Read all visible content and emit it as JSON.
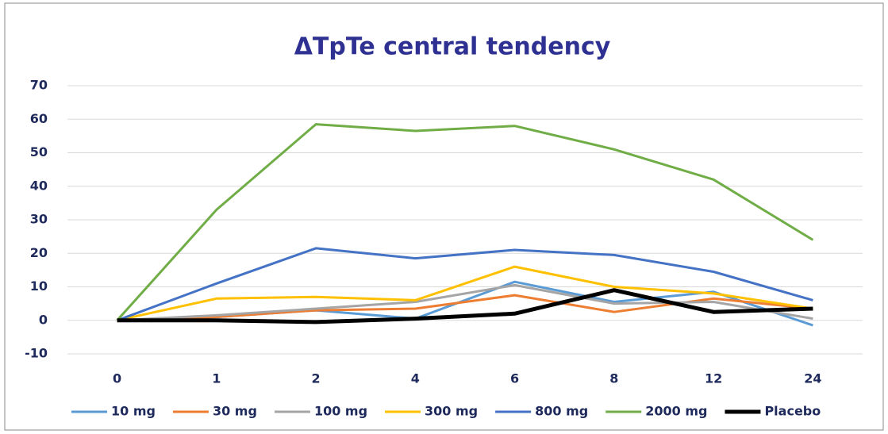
{
  "chart_data": {
    "type": "line",
    "title": "ΔTpTe central tendency",
    "categories": [
      "0",
      "1",
      "2",
      "4",
      "6",
      "8",
      "12",
      "24"
    ],
    "series": [
      {
        "name": "10 mg",
        "color": "#5b9bd5",
        "values": [
          0,
          1,
          3,
          0.5,
          11.5,
          5.5,
          8.5,
          -1.5
        ]
      },
      {
        "name": "30 mg",
        "color": "#ed7d31",
        "values": [
          0,
          1,
          3,
          3.5,
          7.5,
          2.5,
          6.5,
          3.5
        ]
      },
      {
        "name": "100 mg",
        "color": "#a5a5a5",
        "values": [
          0,
          1.5,
          3.5,
          5.5,
          10.5,
          5,
          5.5,
          0.5
        ]
      },
      {
        "name": "300 mg",
        "color": "#ffc000",
        "values": [
          0,
          6.5,
          7,
          6,
          16,
          10,
          8,
          3.5
        ]
      },
      {
        "name": "800 mg",
        "color": "#4472c4",
        "values": [
          0,
          11,
          21.5,
          18.5,
          21,
          19.5,
          14.5,
          6
        ]
      },
      {
        "name": "2000 mg",
        "color": "#70ad47",
        "values": [
          0,
          33,
          58.5,
          56.5,
          58,
          51,
          42,
          24
        ]
      },
      {
        "name": "Placebo",
        "color": "#000000",
        "values": [
          0,
          0,
          -0.5,
          0.5,
          2,
          9,
          2.5,
          3.5
        ]
      }
    ],
    "ylim": [
      -10,
      70
    ],
    "yticks": [
      -10,
      0,
      10,
      20,
      30,
      40,
      50,
      60,
      70
    ],
    "grid": true,
    "legend": "bottom"
  }
}
